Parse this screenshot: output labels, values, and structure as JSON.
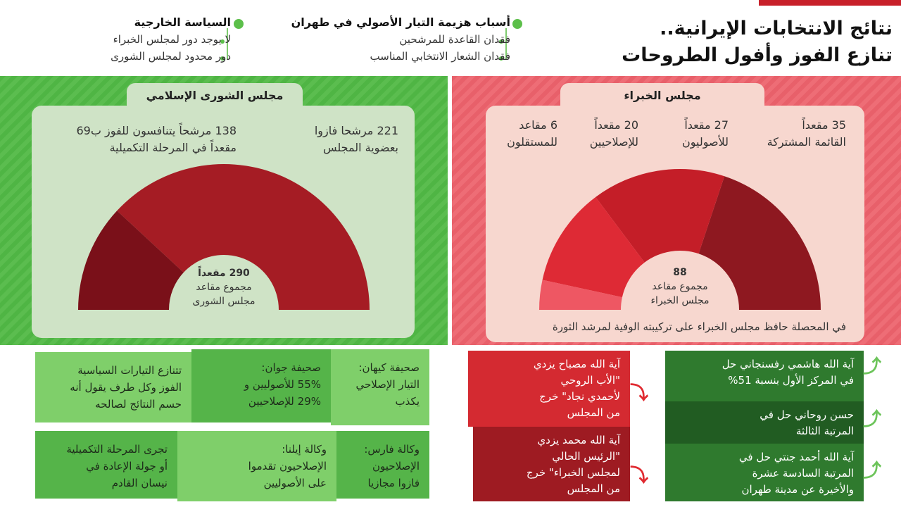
{
  "header": {
    "title_line1": "نتائج الانتخابات الإيرانية..",
    "title_line2": "تنازع الفوز وأفول الطروحات"
  },
  "bullets": [
    {
      "heading": "أسباب هزيمة التيار الأصولي في طهران",
      "items": [
        "فقدان القاعدة للمرشحين",
        "فقدان الشعار الانتخابي المناسب"
      ]
    },
    {
      "heading": "السياسة الخارجية",
      "items": [
        "لا يوجد دور لمجلس الخبراء",
        "دور محدود لمجلس الشورى"
      ]
    }
  ],
  "colors": {
    "green": "#55b84a",
    "red": "#ea6670",
    "dark_red": "#7a1019",
    "red_segment": "#a51c24",
    "dark_green": "#2f7a2e"
  },
  "chart_data": [
    {
      "type": "pie",
      "style": "half-donut",
      "title": "مجلس الشورى الإسلامي",
      "total": 290,
      "center_label": [
        "290 مقعداً",
        "مجموع مقاعد",
        "مجلس الشورى"
      ],
      "slices": [
        {
          "value": 221,
          "label": [
            "221 مرشحا فازوا",
            "بعضوية المجلس"
          ],
          "color": "#a51c24"
        },
        {
          "value": 69,
          "label": [
            "138 مرشحاً يتنافسون للفوز ب69",
            "مقعداً في المرحلة التكميلية"
          ],
          "color": "#7a1019"
        }
      ]
    },
    {
      "type": "pie",
      "style": "half-donut",
      "title": "مجلس الخبراء",
      "total": 88,
      "center_label": [
        "88",
        "مجموع مقاعد",
        "مجلس الخبراء"
      ],
      "footnote": "في المحصلة حافظ مجلس الخبراء على تركيبته الوفية لمرشد الثورة",
      "slices": [
        {
          "value": 35,
          "label": [
            "35 مقعداً",
            "القائمة المشتركة"
          ],
          "color": "#8e1820"
        },
        {
          "value": 27,
          "label": [
            "27 مقعداً",
            "للأصوليون"
          ],
          "color": "#c41e28"
        },
        {
          "value": 20,
          "label": [
            "20 مقعداً",
            "للإصلاحيين"
          ],
          "color": "#de2a35"
        },
        {
          "value": 6,
          "label": [
            "6 مقاعد",
            "للمستقلون"
          ],
          "color": "#ee5763"
        }
      ]
    }
  ],
  "press": [
    [
      "صحيفة كيهان:",
      "التيار الإصلاحي",
      "يكذب"
    ],
    [
      "صحيفة جوان:",
      "55% للأصوليين و",
      "29% للإصلاحيين"
    ],
    [
      "تتنازع التيارات السياسية",
      "الفوز وكل طرف يقول أنه",
      "حسم النتائج لصالحه"
    ],
    [
      "وكالة فارس:",
      "الإصلاحيون",
      "فازوا مجازيا"
    ],
    [
      "وكالة إيلنا:",
      "الإصلاحيون تقدموا",
      "على الأصوليين"
    ],
    [
      "تجرى المرحلة التكميلية",
      "أو جولة الإعادة في",
      "نيسان القادم"
    ]
  ],
  "losers": [
    [
      "آية الله مصباح يزدي",
      "\"الأب الروحي",
      "لأحمدي نجاد\" خرج",
      "من المجلس"
    ],
    [
      "آية الله محمد يزدي",
      "\"الرئيس الحالي",
      "لمجلس الخبراء\" خرج",
      "من المجلس"
    ]
  ],
  "winners": [
    [
      "آية الله هاشمي رفسنجاني حل",
      "في المركز الأول بنسبة 51%"
    ],
    [
      "حسن روحاني حل في",
      "المرتبة الثالثة"
    ],
    [
      "آية الله أحمد جنتي حل في",
      "المرتبة السادسة عشرة",
      "والأخيرة عن مدينة طهران"
    ]
  ]
}
